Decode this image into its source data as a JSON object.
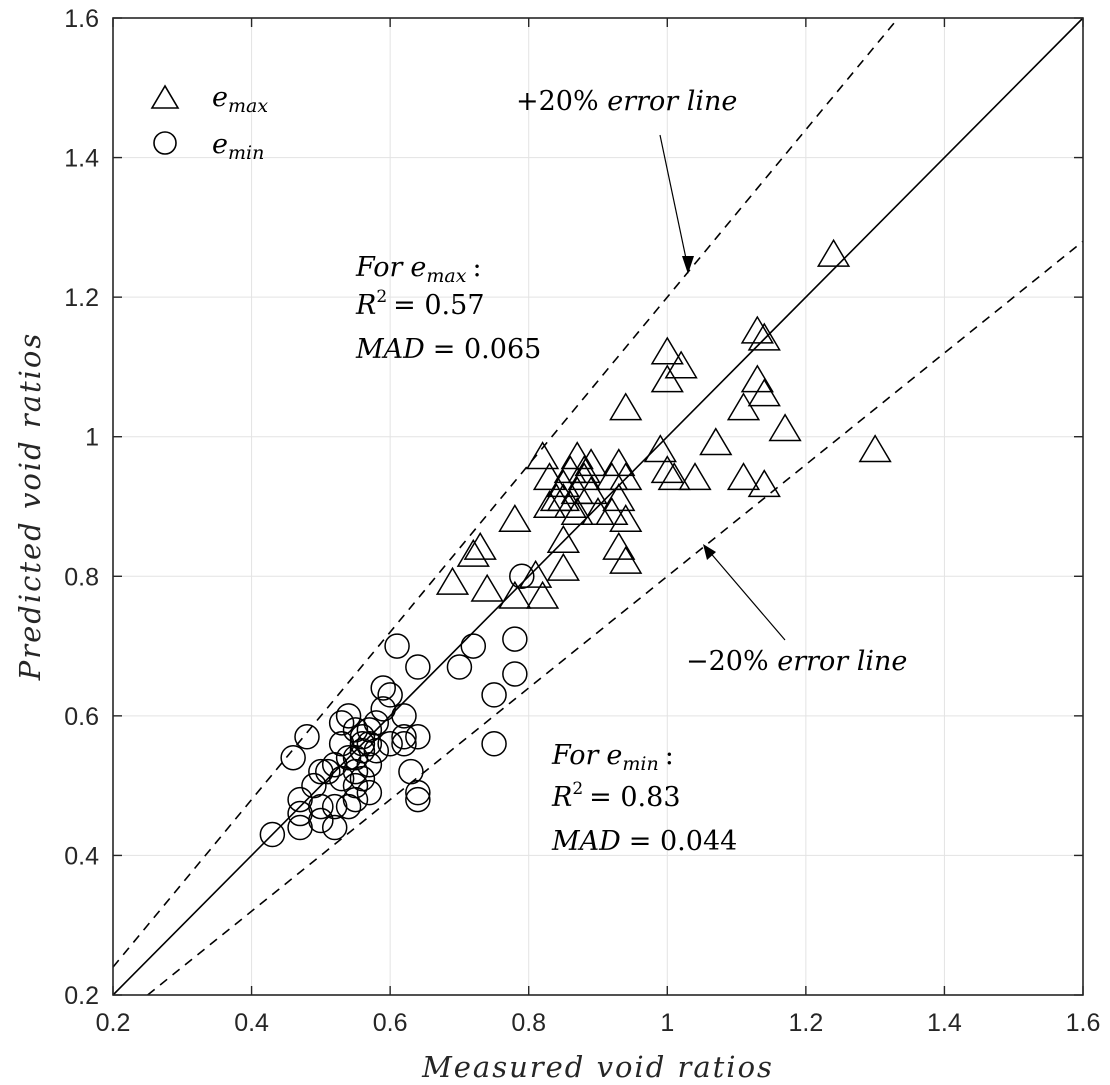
{
  "chart_data": {
    "type": "scatter",
    "xlabel": "Measured void ratios",
    "ylabel": "Predicted void ratios",
    "xlim": [
      0.2,
      1.6
    ],
    "ylim": [
      0.2,
      1.6
    ],
    "xticks": [
      "0.2",
      "0.4",
      "0.6",
      "0.8",
      "1",
      "1.2",
      "1.4",
      "1.6"
    ],
    "yticks": [
      "0.2",
      "0.4",
      "0.6",
      "0.8",
      "1",
      "1.2",
      "1.4",
      "1.6"
    ],
    "grid": true,
    "legend_position": "top-left",
    "legend": [
      {
        "marker": "triangle",
        "base": "e",
        "sub": "max"
      },
      {
        "marker": "circle",
        "base": "e",
        "sub": "min"
      }
    ],
    "lines": [
      {
        "style": "solid",
        "slope": 1.0
      },
      {
        "style": "dashed",
        "slope": 1.2
      },
      {
        "style": "dashed",
        "slope": 0.8
      }
    ],
    "annotations": {
      "plus_line": "+20% error line",
      "minus_line": "−20% error line",
      "emax_stats": {
        "for": "For",
        "base": "e",
        "sub": "max",
        "colon": ":",
        "r2_lhs": "R",
        "r2_sup": "2",
        "r2_rhs": "= 0.57",
        "mad_lhs": "MAD",
        "mad_rhs": "= 0.065"
      },
      "emin_stats": {
        "for": "For",
        "base": "e",
        "sub": "min",
        "colon": ":",
        "r2_lhs": "R",
        "r2_sup": "2",
        "r2_rhs": "= 0.83",
        "mad_lhs": "MAD",
        "mad_rhs": "= 0.044"
      }
    },
    "series": [
      {
        "name": "e_max",
        "marker": "triangle",
        "points": [
          [
            1.24,
            1.26
          ],
          [
            1.13,
            1.15
          ],
          [
            1.14,
            1.14
          ],
          [
            1.0,
            1.12
          ],
          [
            1.02,
            1.1
          ],
          [
            1.0,
            1.08
          ],
          [
            1.13,
            1.08
          ],
          [
            1.14,
            1.06
          ],
          [
            1.11,
            1.04
          ],
          [
            0.94,
            1.04
          ],
          [
            1.17,
            1.01
          ],
          [
            1.3,
            0.98
          ],
          [
            1.07,
            0.99
          ],
          [
            0.99,
            0.98
          ],
          [
            0.82,
            0.97
          ],
          [
            0.87,
            0.97
          ],
          [
            0.89,
            0.96
          ],
          [
            0.93,
            0.96
          ],
          [
            0.86,
            0.95
          ],
          [
            0.88,
            0.95
          ],
          [
            1.0,
            0.95
          ],
          [
            1.01,
            0.94
          ],
          [
            1.04,
            0.94
          ],
          [
            1.11,
            0.94
          ],
          [
            1.14,
            0.93
          ],
          [
            0.83,
            0.94
          ],
          [
            0.85,
            0.93
          ],
          [
            0.92,
            0.94
          ],
          [
            0.94,
            0.94
          ],
          [
            0.87,
            0.92
          ],
          [
            0.89,
            0.92
          ],
          [
            0.93,
            0.91
          ],
          [
            0.84,
            0.91
          ],
          [
            0.83,
            0.9
          ],
          [
            0.86,
            0.9
          ],
          [
            0.9,
            0.89
          ],
          [
            0.87,
            0.89
          ],
          [
            0.78,
            0.88
          ],
          [
            0.94,
            0.88
          ],
          [
            0.92,
            0.89
          ],
          [
            0.85,
            0.85
          ],
          [
            0.73,
            0.84
          ],
          [
            0.93,
            0.84
          ],
          [
            0.72,
            0.83
          ],
          [
            0.94,
            0.82
          ],
          [
            0.85,
            0.81
          ],
          [
            0.81,
            0.8
          ],
          [
            0.69,
            0.79
          ],
          [
            0.74,
            0.78
          ],
          [
            0.82,
            0.77
          ],
          [
            0.78,
            0.77
          ],
          [
            0.85,
            0.91
          ],
          [
            0.88,
            0.94
          ]
        ]
      },
      {
        "name": "e_min",
        "marker": "circle",
        "points": [
          [
            0.61,
            0.7
          ],
          [
            0.72,
            0.7
          ],
          [
            0.78,
            0.71
          ],
          [
            0.64,
            0.67
          ],
          [
            0.7,
            0.67
          ],
          [
            0.78,
            0.66
          ],
          [
            0.59,
            0.64
          ],
          [
            0.75,
            0.63
          ],
          [
            0.6,
            0.63
          ],
          [
            0.59,
            0.61
          ],
          [
            0.62,
            0.6
          ],
          [
            0.53,
            0.59
          ],
          [
            0.54,
            0.6
          ],
          [
            0.58,
            0.59
          ],
          [
            0.55,
            0.58
          ],
          [
            0.57,
            0.58
          ],
          [
            0.48,
            0.57
          ],
          [
            0.64,
            0.57
          ],
          [
            0.56,
            0.57
          ],
          [
            0.62,
            0.57
          ],
          [
            0.53,
            0.56
          ],
          [
            0.57,
            0.56
          ],
          [
            0.6,
            0.56
          ],
          [
            0.62,
            0.56
          ],
          [
            0.75,
            0.56
          ],
          [
            0.56,
            0.55
          ],
          [
            0.58,
            0.55
          ],
          [
            0.46,
            0.54
          ],
          [
            0.54,
            0.54
          ],
          [
            0.55,
            0.54
          ],
          [
            0.52,
            0.53
          ],
          [
            0.57,
            0.53
          ],
          [
            0.5,
            0.52
          ],
          [
            0.51,
            0.52
          ],
          [
            0.55,
            0.52
          ],
          [
            0.63,
            0.52
          ],
          [
            0.56,
            0.51
          ],
          [
            0.53,
            0.51
          ],
          [
            0.49,
            0.5
          ],
          [
            0.55,
            0.5
          ],
          [
            0.57,
            0.49
          ],
          [
            0.64,
            0.49
          ],
          [
            0.47,
            0.48
          ],
          [
            0.55,
            0.48
          ],
          [
            0.64,
            0.48
          ],
          [
            0.52,
            0.47
          ],
          [
            0.54,
            0.47
          ],
          [
            0.5,
            0.47
          ],
          [
            0.47,
            0.46
          ],
          [
            0.5,
            0.45
          ],
          [
            0.47,
            0.44
          ],
          [
            0.52,
            0.44
          ],
          [
            0.43,
            0.43
          ],
          [
            0.79,
            0.8
          ],
          [
            0.56,
            0.56
          ]
        ]
      }
    ]
  }
}
